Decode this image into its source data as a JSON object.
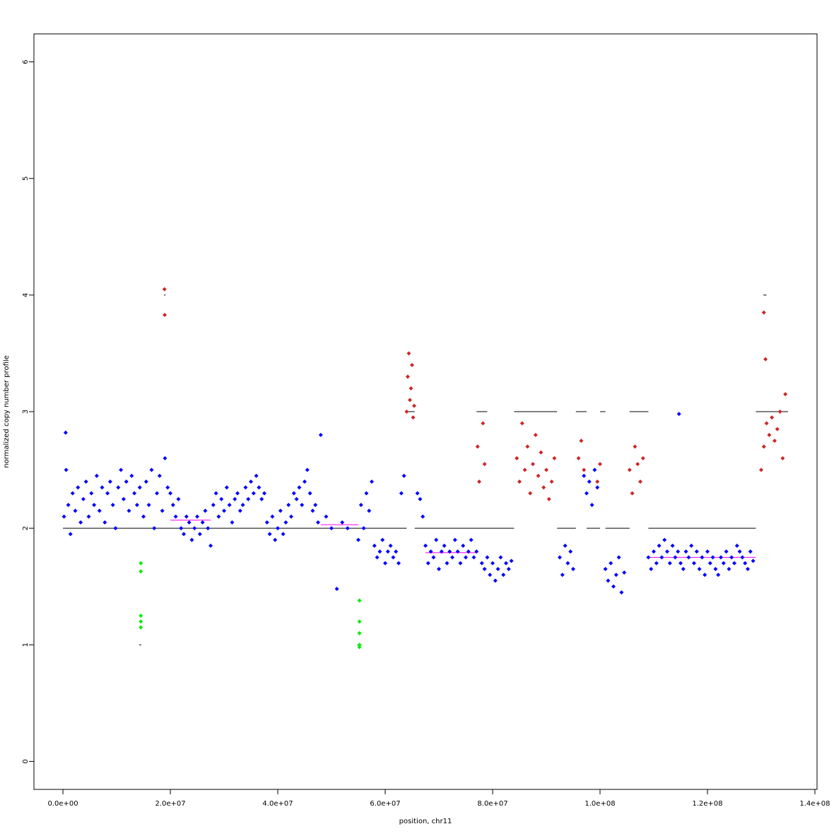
{
  "chart_data": {
    "type": "scatter",
    "x_label": "position, chr11",
    "y_label": "normalized copy number profile",
    "xlim": [
      -5400000,
      140400000
    ],
    "ylim": [
      -0.24,
      6.24
    ],
    "xticks": [
      {
        "value": 0,
        "label": "0.0e+00"
      },
      {
        "value": 20000000,
        "label": "2.0e+07"
      },
      {
        "value": 40000000,
        "label": "4.0e+07"
      },
      {
        "value": 60000000,
        "label": "6.0e+07"
      },
      {
        "value": 80000000,
        "label": "8.0e+07"
      },
      {
        "value": 100000000,
        "label": "1.0e+08"
      },
      {
        "value": 120000000,
        "label": "1.2e+08"
      },
      {
        "value": 140000000,
        "label": "1.4e+08"
      }
    ],
    "yticks": [
      0,
      1,
      2,
      3,
      4,
      5,
      6
    ],
    "series": [
      {
        "color": "#0000ff",
        "x": [
          200000,
          600000,
          1000000,
          1400000,
          1800000,
          2300000,
          2800000,
          3300000,
          3800000,
          4300000,
          4800000,
          5300000,
          5800000,
          6300000,
          6800000,
          7300000,
          7800000,
          8300000,
          8800000,
          9300000,
          9800000,
          10300000,
          10800000,
          11300000,
          11800000,
          12300000,
          12800000,
          13300000,
          13800000,
          14300000,
          15000000,
          15500000,
          16000000,
          16500000,
          17000000,
          17500000,
          18000000,
          18500000,
          19000000,
          19500000,
          20000000,
          20500000,
          21000000,
          21500000,
          22000000,
          22500000,
          23000000,
          23500000,
          24000000,
          24500000,
          25000000,
          25500000,
          26000000,
          26500000,
          27000000,
          27500000,
          28000000,
          28500000,
          29000000,
          29500000,
          30000000,
          30500000,
          31000000,
          31500000,
          32000000,
          32500000,
          33000000,
          33500000,
          34000000,
          34500000,
          35000000,
          35500000,
          36000000,
          36500000,
          37000000,
          37500000,
          38000000,
          38500000,
          39000000,
          39500000,
          40000000,
          40500000,
          41000000,
          41500000,
          42000000,
          42500000,
          43000000,
          43500000,
          44000000,
          44500000,
          45000000,
          45500000,
          46000000,
          46500000,
          47000000,
          47500000,
          48000000,
          49000000,
          50000000,
          51000000,
          52000000,
          53000000,
          55000000,
          55500000,
          56000000,
          56500000,
          57000000,
          57500000,
          58000000,
          58500000,
          59000000,
          59500000,
          60000000,
          60500000,
          61000000,
          61500000,
          62000000,
          62500000,
          63000000,
          63500000,
          66000000,
          66500000,
          67000000,
          67500000,
          68000000,
          68500000,
          69000000,
          69500000,
          70000000,
          70500000,
          71000000,
          71500000,
          72000000,
          72500000,
          73000000,
          73500000,
          74000000,
          74500000,
          75000000,
          75500000,
          76000000,
          76500000,
          77000000,
          78000000,
          78500000,
          79000000,
          79500000,
          80000000,
          80500000,
          81000000,
          81500000,
          82000000,
          82500000,
          83000000,
          83500000,
          92500000,
          93000000,
          93500000,
          94000000,
          94500000,
          95000000,
          97000000,
          97500000,
          98000000,
          98500000,
          99000000,
          99500000,
          101000000,
          101500000,
          102000000,
          102500000,
          103000000,
          103500000,
          104000000,
          104500000,
          109000000,
          109500000,
          110000000,
          110500000,
          111000000,
          111500000,
          112000000,
          112500000,
          113000000,
          113500000,
          114000000,
          114500000,
          115000000,
          115500000,
          116000000,
          116500000,
          117000000,
          117500000,
          118000000,
          118500000,
          119000000,
          119500000,
          120000000,
          120500000,
          121000000,
          121500000,
          122000000,
          122500000,
          123000000,
          123500000,
          124000000,
          124500000,
          125000000,
          125500000,
          126000000,
          126500000,
          127000000,
          127500000,
          128000000,
          128500000,
          114700000,
          500000
        ],
        "values": [
          2.1,
          2.5,
          2.2,
          1.95,
          2.3,
          2.15,
          2.35,
          2.05,
          2.25,
          2.4,
          2.1,
          2.3,
          2.2,
          2.45,
          2.15,
          2.35,
          2.05,
          2.3,
          2.4,
          2.2,
          2.0,
          2.35,
          2.5,
          2.25,
          2.4,
          2.15,
          2.45,
          2.3,
          2.2,
          2.35,
          2.1,
          2.4,
          2.2,
          2.5,
          2.0,
          2.3,
          2.45,
          2.15,
          2.6,
          2.35,
          2.3,
          2.2,
          2.1,
          2.25,
          2.0,
          1.95,
          2.1,
          2.05,
          1.9,
          2.0,
          2.1,
          1.95,
          2.05,
          2.15,
          2.0,
          1.85,
          2.2,
          2.3,
          2.1,
          2.25,
          2.15,
          2.35,
          2.2,
          2.05,
          2.25,
          2.3,
          2.15,
          2.2,
          2.35,
          2.25,
          2.4,
          2.3,
          2.45,
          2.35,
          2.25,
          2.3,
          2.05,
          1.95,
          2.1,
          1.9,
          2.0,
          2.15,
          1.95,
          2.05,
          2.2,
          2.1,
          2.3,
          2.25,
          2.35,
          2.2,
          2.4,
          2.5,
          2.3,
          2.15,
          2.2,
          2.05,
          2.8,
          2.1,
          2.0,
          1.48,
          2.05,
          2.0,
          1.9,
          2.2,
          2.0,
          2.3,
          2.15,
          2.4,
          1.85,
          1.75,
          1.8,
          1.9,
          1.7,
          1.8,
          1.85,
          1.75,
          1.8,
          1.7,
          2.3,
          2.45,
          2.3,
          2.25,
          2.1,
          1.85,
          1.7,
          1.8,
          1.75,
          1.9,
          1.65,
          1.8,
          1.85,
          1.7,
          1.8,
          1.75,
          1.9,
          1.8,
          1.7,
          1.85,
          1.75,
          1.8,
          1.9,
          1.75,
          1.8,
          1.7,
          1.65,
          1.75,
          1.6,
          1.7,
          1.55,
          1.65,
          1.75,
          1.6,
          1.7,
          1.65,
          1.72,
          1.75,
          1.6,
          1.85,
          1.7,
          1.8,
          1.65,
          2.45,
          2.3,
          2.4,
          2.2,
          2.5,
          2.35,
          1.65,
          1.55,
          1.7,
          1.5,
          1.6,
          1.75,
          1.45,
          1.62,
          1.75,
          1.65,
          1.8,
          1.7,
          1.85,
          1.75,
          1.9,
          1.8,
          1.7,
          1.85,
          1.75,
          1.8,
          1.7,
          1.65,
          1.8,
          1.75,
          1.85,
          1.7,
          1.8,
          1.65,
          1.75,
          1.6,
          1.8,
          1.7,
          1.75,
          1.65,
          1.6,
          1.75,
          1.7,
          1.8,
          1.65,
          1.75,
          1.7,
          1.85,
          1.8,
          1.75,
          1.7,
          1.65,
          1.8,
          1.72,
          2.98,
          2.82
        ]
      },
      {
        "color": "#cd2626",
        "x": [
          18900000,
          18950000,
          64000000,
          64200000,
          64400000,
          64600000,
          64800000,
          65000000,
          65200000,
          65400000,
          77200000,
          77500000,
          78200000,
          78500000,
          84500000,
          85000000,
          85500000,
          86000000,
          86500000,
          87000000,
          87500000,
          88000000,
          88500000,
          89000000,
          89500000,
          90000000,
          90500000,
          91000000,
          91500000,
          96000000,
          96500000,
          97000000,
          99500000,
          100000000,
          105500000,
          106000000,
          106500000,
          107000000,
          107500000,
          108000000,
          130000000,
          130500000,
          131000000,
          131500000,
          132000000,
          132500000,
          133000000,
          133500000,
          134000000,
          134500000,
          130500000,
          130800000
        ],
        "values": [
          4.05,
          3.83,
          3.0,
          3.3,
          3.5,
          3.1,
          3.2,
          3.4,
          2.95,
          3.05,
          2.7,
          2.4,
          2.9,
          2.55,
          2.6,
          2.4,
          2.9,
          2.5,
          2.7,
          2.3,
          2.55,
          2.8,
          2.45,
          2.65,
          2.35,
          2.5,
          2.25,
          2.4,
          2.6,
          2.6,
          2.75,
          2.5,
          2.4,
          2.55,
          2.5,
          2.3,
          2.7,
          2.55,
          2.4,
          2.6,
          2.5,
          2.7,
          2.9,
          2.8,
          2.95,
          2.75,
          2.85,
          3.0,
          2.6,
          3.15,
          3.85,
          3.45
        ]
      },
      {
        "color": "#00ee00",
        "x": [
          14500000,
          14500000,
          14500000,
          14500000,
          14500000,
          55200000,
          55200000,
          55200000,
          55200000,
          55200000
        ],
        "values": [
          1.7,
          1.63,
          1.25,
          1.2,
          1.15,
          1.38,
          1.2,
          1.1,
          1.0,
          0.98
        ]
      }
    ],
    "segments": [
      {
        "color": "#000000",
        "start": 0,
        "end": 64000000,
        "value": 2
      },
      {
        "color": "#000000",
        "start": 14200000,
        "end": 14600000,
        "value": 1
      },
      {
        "color": "#000000",
        "start": 18800000,
        "end": 19100000,
        "value": 4
      },
      {
        "color": "#000000",
        "start": 54800000,
        "end": 55600000,
        "value": 1
      },
      {
        "color": "#000000",
        "start": 63900000,
        "end": 65500000,
        "value": 3
      },
      {
        "color": "#000000",
        "start": 65500000,
        "end": 84000000,
        "value": 2
      },
      {
        "color": "#000000",
        "start": 77000000,
        "end": 79000000,
        "value": 3
      },
      {
        "color": "#000000",
        "start": 84000000,
        "end": 92000000,
        "value": 3
      },
      {
        "color": "#000000",
        "start": 92000000,
        "end": 95500000,
        "value": 2
      },
      {
        "color": "#000000",
        "start": 95500000,
        "end": 97500000,
        "value": 3
      },
      {
        "color": "#000000",
        "start": 97500000,
        "end": 100000000,
        "value": 2
      },
      {
        "color": "#000000",
        "start": 100000000,
        "end": 101000000,
        "value": 3
      },
      {
        "color": "#000000",
        "start": 101000000,
        "end": 105500000,
        "value": 2
      },
      {
        "color": "#000000",
        "start": 105500000,
        "end": 109000000,
        "value": 3
      },
      {
        "color": "#000000",
        "start": 109000000,
        "end": 129000000,
        "value": 2
      },
      {
        "color": "#000000",
        "start": 129000000,
        "end": 135000000,
        "value": 3
      },
      {
        "color": "#000000",
        "start": 130400000,
        "end": 131000000,
        "value": 4
      },
      {
        "color": "#ff00ff",
        "start": 20000000,
        "end": 27500000,
        "value": 2.07
      },
      {
        "color": "#ff00ff",
        "start": 48000000,
        "end": 55000000,
        "value": 2.03
      },
      {
        "color": "#ff00ff",
        "start": 67500000,
        "end": 77000000,
        "value": 1.79
      },
      {
        "color": "#ff00ff",
        "start": 109000000,
        "end": 129000000,
        "value": 1.75
      }
    ]
  }
}
